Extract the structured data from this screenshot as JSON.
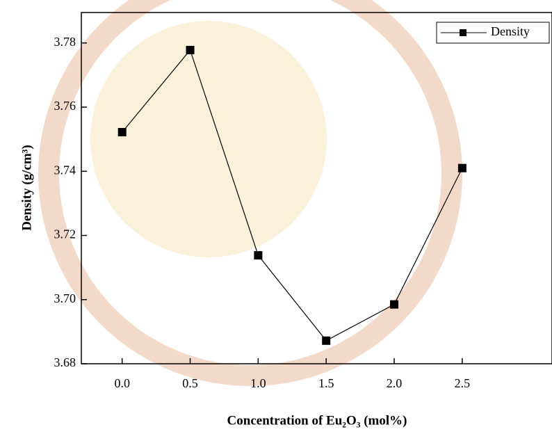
{
  "chart_data": {
    "type": "line",
    "x_label": "Concentration of Eu₂O₃ (mol%)",
    "y_label": "Density (g/cm³)",
    "x": [
      0.0,
      0.5,
      1.0,
      1.5,
      2.0,
      2.5
    ],
    "series": [
      {
        "name": "Density",
        "color": "#000000",
        "values": [
          3.7522,
          3.7778,
          3.7138,
          3.6872,
          3.6985,
          3.741
        ]
      }
    ],
    "xlim": [
      -0.3,
      3.16
    ],
    "ylim": [
      3.68,
      3.7895
    ],
    "xticks": [
      {
        "value": 0,
        "label": "0.0"
      },
      {
        "value": 0.5,
        "label": "0.5"
      },
      {
        "value": 1,
        "label": "1.0"
      },
      {
        "value": 1.5,
        "label": "1.5"
      },
      {
        "value": 2,
        "label": "2.0"
      },
      {
        "value": 2.5,
        "label": "2.5"
      }
    ],
    "yticks": [
      {
        "value": 3.68,
        "label": "3.68"
      },
      {
        "value": 3.7,
        "label": "3.70"
      },
      {
        "value": 3.72,
        "label": "3.72"
      },
      {
        "value": 3.74,
        "label": "3.74"
      },
      {
        "value": 3.76,
        "label": "3.76"
      },
      {
        "value": 3.78,
        "label": "3.78"
      }
    ],
    "legend": "upper-right"
  }
}
